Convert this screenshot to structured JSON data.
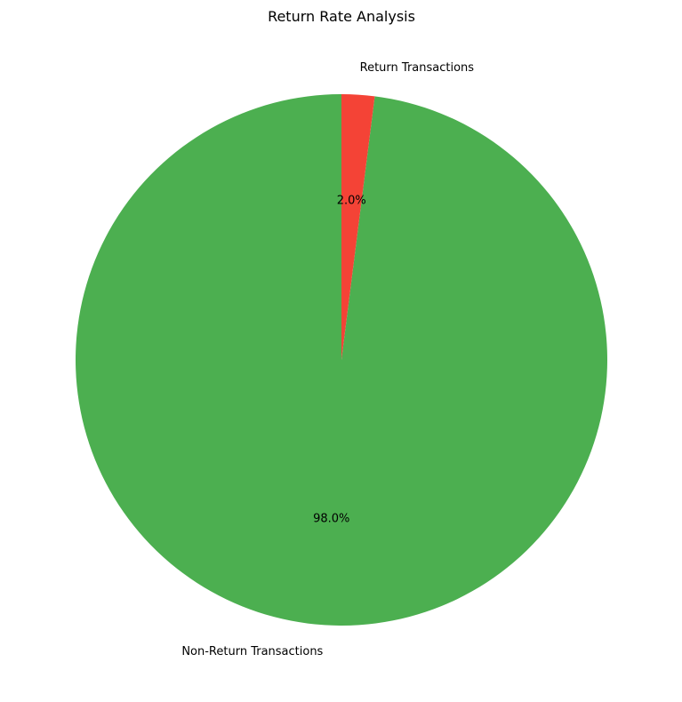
{
  "chart_data": {
    "type": "pie",
    "title": "Return Rate Analysis",
    "start_angle_deg": 90,
    "direction": "counterclockwise",
    "slices": [
      {
        "label": "Non-Return Transactions",
        "value": 98.0,
        "pct_label": "98.0%",
        "color": "#4caf50"
      },
      {
        "label": "Return Transactions",
        "value": 2.0,
        "pct_label": "2.0%",
        "color": "#f44336"
      }
    ]
  }
}
